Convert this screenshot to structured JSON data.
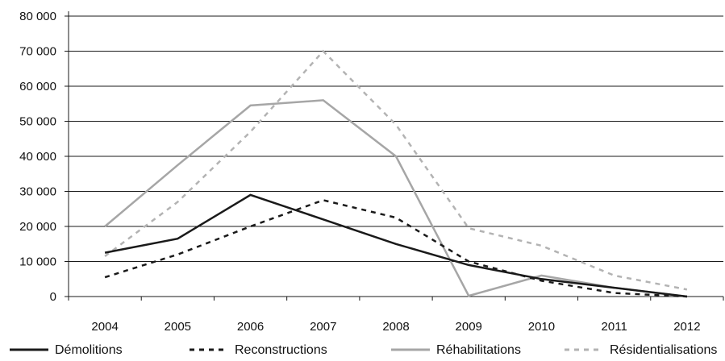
{
  "chart_data": {
    "type": "line",
    "title": "",
    "xlabel": "",
    "ylabel": "",
    "categories": [
      "2004",
      "2005",
      "2006",
      "2007",
      "2008",
      "2009",
      "2010",
      "2011",
      "2012"
    ],
    "ylim": [
      0,
      80000
    ],
    "y_ticks": [
      0,
      10000,
      20000,
      30000,
      40000,
      50000,
      60000,
      70000,
      80000
    ],
    "y_tick_labels": [
      "0",
      "10 000",
      "20 000",
      "30 000",
      "40 000",
      "50 000",
      "60 000",
      "70 000",
      "80 000"
    ],
    "grid": "horizontal",
    "legend_position": "bottom",
    "series": [
      {
        "name": "Démolitions",
        "color": "#1a1a1a",
        "style": "solid",
        "values": [
          12500,
          16500,
          29000,
          22000,
          15000,
          9000,
          5000,
          2500,
          0
        ]
      },
      {
        "name": "Reconstructions",
        "color": "#1a1a1a",
        "style": "dashed",
        "values": [
          5500,
          12000,
          20000,
          27500,
          22500,
          10000,
          4500,
          1000,
          0
        ]
      },
      {
        "name": "Réhabilitations",
        "color": "#a6a6a6",
        "style": "solid",
        "values": [
          20000,
          37500,
          54500,
          56000,
          40000,
          200,
          6000,
          2500,
          0
        ]
      },
      {
        "name": "Résidentialisations",
        "color": "#b3b3b3",
        "style": "dashed",
        "values": [
          11500,
          27000,
          47000,
          70000,
          49000,
          19500,
          14500,
          6000,
          2000
        ]
      }
    ]
  }
}
